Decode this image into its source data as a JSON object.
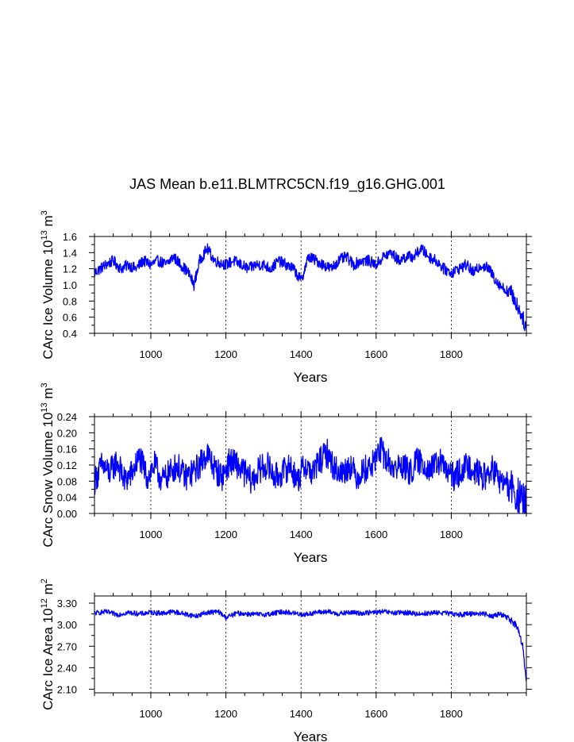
{
  "figure": {
    "title": "JAS Mean b.e11.BLMTRC5CN.f19_g16.GHG.001",
    "series_color": "#0000ff"
  },
  "chart_data": [
    {
      "type": "line",
      "title": "JAS Mean b.e11.BLMTRC5CN.f19_g16.GHG.001",
      "xlabel": "Years",
      "ylabel": "CArc Ice Volume 10",
      "ylabel_exp": "13",
      "ylabel_unit": "m",
      "ylabel_unit_exp": "3",
      "xlim": [
        850,
        2000
      ],
      "ylim": [
        0.4,
        1.6
      ],
      "xticks": [
        1000,
        1200,
        1400,
        1600,
        1800
      ],
      "xtick_labels": [
        "1000",
        "1200",
        "1400",
        "1600",
        "1800"
      ],
      "yticks": [
        0.4,
        0.6,
        0.8,
        1.0,
        1.2,
        1.4,
        1.6
      ],
      "ytick_labels": [
        "0.4",
        "0.6",
        "0.8",
        "1.0",
        "1.2",
        "1.4",
        "1.6"
      ],
      "grid": "vertical dashed at major x ticks",
      "series": [
        {
          "color": "#0000ff",
          "x": [
            850,
            880,
            900,
            920,
            940,
            960,
            980,
            1000,
            1020,
            1040,
            1060,
            1080,
            1100,
            1115,
            1130,
            1150,
            1170,
            1200,
            1220,
            1240,
            1260,
            1280,
            1300,
            1320,
            1340,
            1360,
            1380,
            1400,
            1420,
            1440,
            1460,
            1480,
            1500,
            1520,
            1540,
            1560,
            1580,
            1600,
            1620,
            1640,
            1660,
            1680,
            1700,
            1720,
            1740,
            1760,
            1780,
            1800,
            1820,
            1840,
            1860,
            1880,
            1900,
            1920,
            1940,
            1960,
            1980,
            1990,
            2000
          ],
          "values": [
            1.15,
            1.25,
            1.3,
            1.2,
            1.25,
            1.2,
            1.3,
            1.25,
            1.3,
            1.25,
            1.35,
            1.25,
            1.15,
            1.0,
            1.3,
            1.45,
            1.3,
            1.25,
            1.3,
            1.25,
            1.2,
            1.25,
            1.25,
            1.2,
            1.3,
            1.25,
            1.2,
            1.05,
            1.35,
            1.3,
            1.25,
            1.2,
            1.3,
            1.35,
            1.25,
            1.3,
            1.3,
            1.25,
            1.35,
            1.4,
            1.3,
            1.35,
            1.35,
            1.45,
            1.35,
            1.3,
            1.2,
            1.15,
            1.2,
            1.25,
            1.15,
            1.25,
            1.2,
            1.05,
            0.95,
            0.9,
            0.7,
            0.6,
            0.45
          ]
        }
      ]
    },
    {
      "type": "line",
      "xlabel": "Years",
      "ylabel": "CArc Snow Volume 10",
      "ylabel_exp": "13",
      "ylabel_unit": "m",
      "ylabel_unit_exp": "3",
      "xlim": [
        850,
        2000
      ],
      "ylim": [
        0.0,
        0.24
      ],
      "xticks": [
        1000,
        1200,
        1400,
        1600,
        1800
      ],
      "xtick_labels": [
        "1000",
        "1200",
        "1400",
        "1600",
        "1800"
      ],
      "yticks": [
        0.0,
        0.04,
        0.08,
        0.12,
        0.16,
        0.2,
        0.24
      ],
      "ytick_labels": [
        "0.00",
        "0.04",
        "0.08",
        "0.12",
        "0.16",
        "0.20",
        "0.24"
      ],
      "grid": "vertical dashed at major x ticks",
      "series": [
        {
          "color": "#0000ff",
          "x": [
            850,
            870,
            890,
            910,
            930,
            950,
            970,
            990,
            1010,
            1030,
            1050,
            1070,
            1090,
            1110,
            1130,
            1150,
            1170,
            1190,
            1210,
            1230,
            1250,
            1270,
            1290,
            1310,
            1330,
            1350,
            1370,
            1390,
            1410,
            1430,
            1450,
            1470,
            1490,
            1510,
            1530,
            1550,
            1570,
            1590,
            1610,
            1630,
            1650,
            1670,
            1690,
            1710,
            1730,
            1750,
            1770,
            1790,
            1810,
            1830,
            1850,
            1870,
            1890,
            1910,
            1930,
            1950,
            1970,
            1985,
            2000
          ],
          "values": [
            0.08,
            0.12,
            0.1,
            0.13,
            0.08,
            0.1,
            0.14,
            0.09,
            0.12,
            0.08,
            0.1,
            0.12,
            0.09,
            0.1,
            0.12,
            0.15,
            0.11,
            0.09,
            0.13,
            0.12,
            0.1,
            0.08,
            0.11,
            0.12,
            0.09,
            0.1,
            0.12,
            0.08,
            0.12,
            0.1,
            0.13,
            0.15,
            0.11,
            0.1,
            0.12,
            0.09,
            0.11,
            0.12,
            0.16,
            0.13,
            0.11,
            0.12,
            0.1,
            0.13,
            0.12,
            0.11,
            0.13,
            0.1,
            0.09,
            0.11,
            0.12,
            0.1,
            0.09,
            0.11,
            0.08,
            0.07,
            0.05,
            0.03,
            0.02
          ]
        }
      ]
    },
    {
      "type": "line",
      "xlabel": "Years",
      "ylabel": "CArc Ice Area 10",
      "ylabel_exp": "12",
      "ylabel_unit": "m",
      "ylabel_unit_exp": "2",
      "xlim": [
        850,
        2000
      ],
      "ylim": [
        2.05,
        3.4
      ],
      "xticks": [
        1000,
        1200,
        1400,
        1600,
        1800
      ],
      "xtick_labels": [
        "1000",
        "1200",
        "1400",
        "1600",
        "1800"
      ],
      "yticks": [
        2.1,
        2.4,
        2.7,
        3.0,
        3.3
      ],
      "ytick_labels": [
        "2.10",
        "2.40",
        "2.70",
        "3.00",
        "3.30"
      ],
      "grid": "vertical dashed at major x ticks",
      "series": [
        {
          "color": "#0000ff",
          "x": [
            850,
            880,
            910,
            940,
            970,
            1000,
            1030,
            1060,
            1090,
            1120,
            1150,
            1180,
            1200,
            1230,
            1260,
            1290,
            1320,
            1350,
            1380,
            1410,
            1440,
            1470,
            1500,
            1530,
            1560,
            1590,
            1620,
            1650,
            1680,
            1710,
            1740,
            1770,
            1800,
            1830,
            1860,
            1890,
            1910,
            1930,
            1950,
            1970,
            1980,
            1990,
            2000
          ],
          "values": [
            3.16,
            3.18,
            3.14,
            3.17,
            3.15,
            3.17,
            3.16,
            3.18,
            3.15,
            3.12,
            3.17,
            3.18,
            3.1,
            3.16,
            3.15,
            3.14,
            3.15,
            3.18,
            3.16,
            3.14,
            3.17,
            3.18,
            3.15,
            3.17,
            3.16,
            3.17,
            3.18,
            3.16,
            3.17,
            3.15,
            3.16,
            3.17,
            3.15,
            3.14,
            3.16,
            3.15,
            3.12,
            3.15,
            3.1,
            3.0,
            2.9,
            2.7,
            2.2
          ]
        }
      ]
    }
  ]
}
